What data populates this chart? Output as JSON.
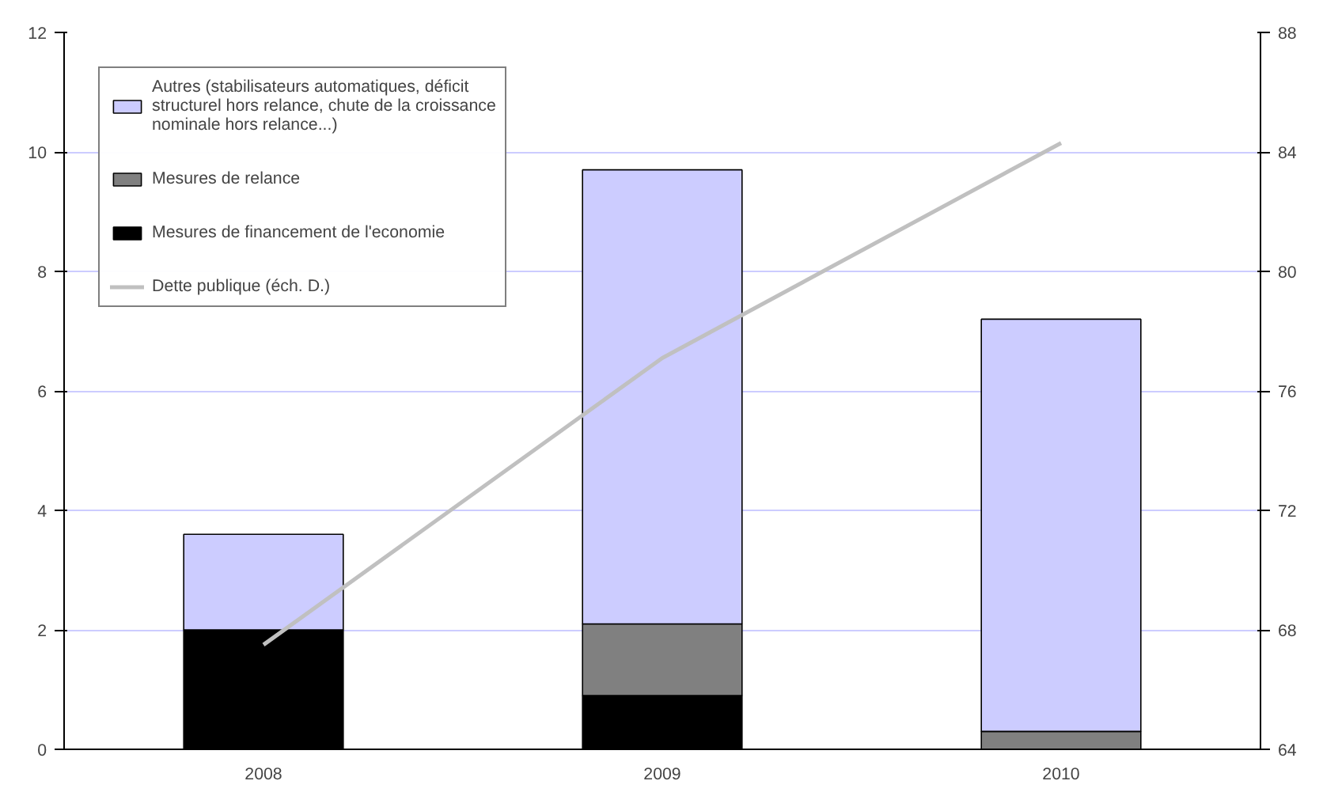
{
  "chart_data": {
    "type": "bar",
    "stacked": true,
    "categories": [
      "2008",
      "2009",
      "2010"
    ],
    "series": [
      {
        "name": "Mesures de financement de l'economie",
        "color": "#000000",
        "values": [
          2.0,
          0.9,
          0
        ]
      },
      {
        "name": "Mesures de relance",
        "color": "#808080",
        "values": [
          0,
          1.2,
          0.3
        ]
      },
      {
        "name": "Autres (stabilisateurs automatiques, déficit structurel hors relance, chute de la croissance nominale hors relance...)",
        "color": "#ccccff",
        "values": [
          1.6,
          7.6,
          6.9
        ]
      },
      {
        "name": "Dette publique (éch. D.)",
        "type": "line",
        "axis": "y2",
        "color": "#c0c0c0",
        "values": [
          67.5,
          77.1,
          84.3
        ]
      }
    ],
    "ylim": [
      0,
      12
    ],
    "yticks": [
      0,
      2,
      4,
      6,
      8,
      10,
      12
    ],
    "y2lim": [
      64,
      88
    ],
    "y2ticks": [
      64,
      68,
      72,
      76,
      80,
      84,
      88
    ],
    "grid": "y",
    "legend": "top left"
  }
}
